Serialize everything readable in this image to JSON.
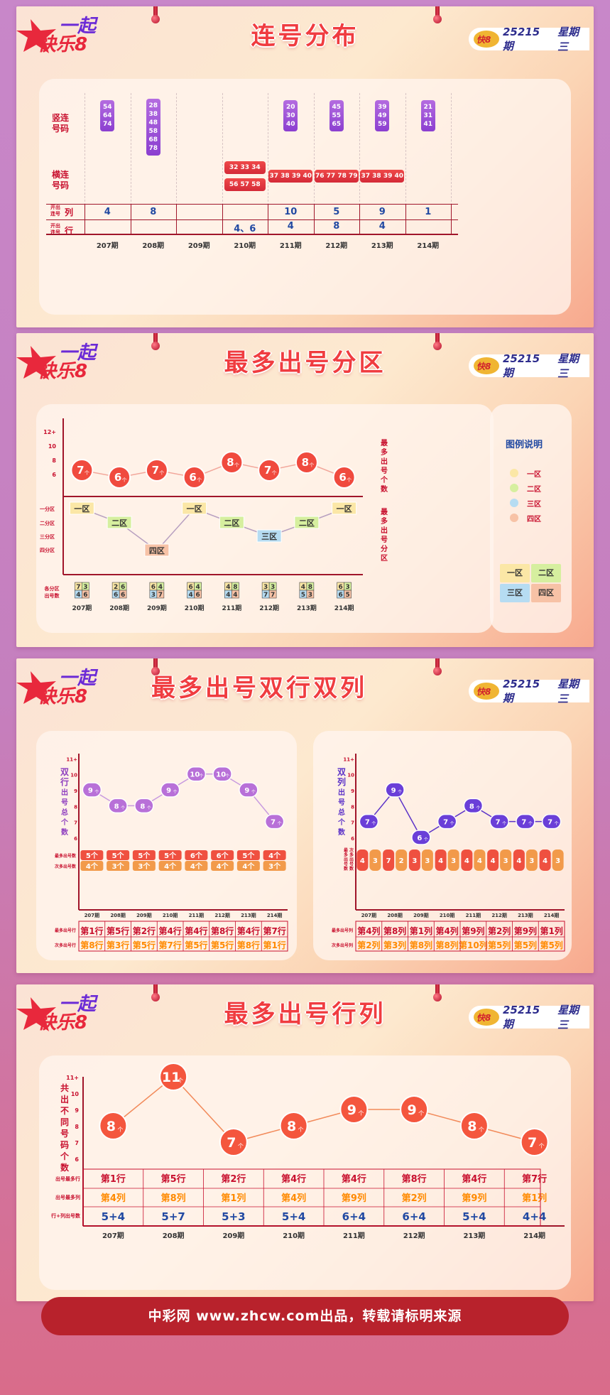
{
  "brand": {
    "logo_text": "一起",
    "logo_sub": "快乐8",
    "issue": "25215期",
    "weekday": "星期三"
  },
  "footer": "中彩网 www.zhcw.com出品，转载请标明来源",
  "p1": {
    "title": "连号分布",
    "row_vertical": "竖连\n号码",
    "row_horizontal": "横连\n号码",
    "row_col_label": "开出\n连号",
    "row_col_suffix": "列",
    "row_row_label": "开出\n连号",
    "row_row_suffix": "行",
    "issues": [
      "207期",
      "208期",
      "209期",
      "210期",
      "211期",
      "212期",
      "213期",
      "214期"
    ],
    "vertical": [
      [
        "54",
        "64",
        "74"
      ],
      [
        "28",
        "38",
        "48",
        "58",
        "68",
        "78"
      ],
      [],
      [],
      [
        "20",
        "30",
        "40"
      ],
      [
        "45",
        "55",
        "65"
      ],
      [
        "39",
        "49",
        "59"
      ],
      [
        "21",
        "31",
        "41"
      ]
    ],
    "horizontal": [
      [],
      [],
      [],
      [
        "32 33 34",
        "56 57 58"
      ],
      [
        "37 38 39 40"
      ],
      [
        "76 77 78 79"
      ],
      [
        "37 38 39 40"
      ],
      []
    ],
    "cols": [
      "4",
      "8",
      "",
      "",
      "10",
      "5",
      "9",
      "1"
    ],
    "rows": [
      "",
      "",
      "",
      "4、6",
      "4",
      "8",
      "4",
      ""
    ]
  },
  "p2": {
    "title": "最多出号分区",
    "yticks": [
      "12+",
      "10",
      "8",
      "6"
    ],
    "right_label1": "最多出号个数",
    "right_label2": "最多出号分区",
    "zone_axis": [
      "一分区",
      "二分区",
      "三分区",
      "四分区"
    ],
    "pair_label": "各分区\n出号数",
    "legend_title": "图例说明",
    "legend": [
      "一区",
      "二区",
      "三区",
      "四区"
    ],
    "legend_colors": [
      "#fbe7a6",
      "#d6ef9f",
      "#b6dcf2",
      "#f7c2a6"
    ],
    "grid_labels": [
      "一区",
      "二区",
      "三区",
      "四区"
    ],
    "pairs": [
      [
        "7",
        "3",
        "4",
        "6"
      ],
      [
        "2",
        "6",
        "6",
        "6"
      ],
      [
        "6",
        "4",
        "3",
        "7"
      ],
      [
        "6",
        "4",
        "4",
        "6"
      ],
      [
        "4",
        "8",
        "4",
        "4"
      ],
      [
        "3",
        "3",
        "7",
        "7"
      ],
      [
        "4",
        "8",
        "5",
        "3"
      ],
      [
        "6",
        "3",
        "6",
        "5"
      ]
    ]
  },
  "p3": {
    "title": "最多出号双行双列",
    "left_ylabel": "双行出号总个数",
    "right_ylabel": "双列出号总个数",
    "yticks": [
      "11+",
      "10",
      "9",
      "8",
      "7",
      "6"
    ],
    "row_labels_a": [
      "最多出号数",
      "次多出号数"
    ],
    "row_labels_b_left": [
      "最多出号行",
      "次多出号行"
    ],
    "row_labels_b_right": [
      "最多出号列",
      "次多出号列"
    ],
    "unit_row": "行",
    "unit_col": "列",
    "unit_rank": "第",
    "left_max": [
      "5",
      "5",
      "5",
      "5",
      "6",
      "6",
      "5",
      "4"
    ],
    "left_second": [
      "4",
      "3",
      "3",
      "4",
      "4",
      "4",
      "4",
      "3"
    ],
    "left_rowmax": [
      "1",
      "5",
      "2",
      "4",
      "4",
      "8",
      "4",
      "7"
    ],
    "left_rowsec": [
      "8",
      "3",
      "5",
      "7",
      "5",
      "5",
      "8",
      "1"
    ],
    "right_pairs": [
      [
        "4",
        "3"
      ],
      [
        "7",
        "2"
      ],
      [
        "3",
        "3"
      ],
      [
        "4",
        "3"
      ],
      [
        "4",
        "4"
      ],
      [
        "4",
        "3"
      ],
      [
        "4",
        "3"
      ],
      [
        "4",
        "3"
      ]
    ],
    "right_colmax": [
      "4",
      "8",
      "1",
      "4",
      "9",
      "2",
      "9",
      "1"
    ],
    "right_colsec": [
      "2",
      "3",
      "8",
      "8",
      "10",
      "5",
      "5",
      "5"
    ]
  },
  "p4": {
    "title": "最多出号行列",
    "ylabel": "共出不同号码个数",
    "yticks": [
      "11+",
      "10",
      "9",
      "8",
      "7",
      "6"
    ],
    "row_labels": [
      "出号最多行",
      "出号最多列",
      "行+列出号数"
    ],
    "unit_row": "行",
    "unit_col": "列",
    "unit_rank": "第",
    "rowmax": [
      "1",
      "5",
      "2",
      "4",
      "4",
      "8",
      "4",
      "7"
    ],
    "colmax": [
      "4",
      "8",
      "1",
      "4",
      "9",
      "2",
      "9",
      "1"
    ],
    "sums": [
      "5+4",
      "5+7",
      "5+3",
      "5+4",
      "6+4",
      "6+4",
      "5+4",
      "4+4"
    ]
  },
  "chart_data": [
    {
      "type": "table",
      "title": "连号分布",
      "categories": [
        "207期",
        "208期",
        "209期",
        "210期",
        "211期",
        "212期",
        "213期",
        "214期"
      ],
      "series": [
        {
          "name": "开出连号列",
          "values": [
            "4",
            "8",
            "",
            "",
            "10",
            "5",
            "9",
            "1"
          ]
        },
        {
          "name": "开出连号行",
          "values": [
            "",
            "",
            "",
            "4、6",
            "4",
            "8",
            "4",
            ""
          ]
        }
      ]
    },
    {
      "type": "line",
      "title": "最多出号分区",
      "categories": [
        "207期",
        "208期",
        "209期",
        "210期",
        "211期",
        "212期",
        "213期",
        "214期"
      ],
      "series": [
        {
          "name": "最多出号个数",
          "values": [
            7,
            6,
            7,
            6,
            8,
            7,
            8,
            6
          ]
        },
        {
          "name": "最多出号分区",
          "values": [
            "一区",
            "二区",
            "四区",
            "一区",
            "二区",
            "三区",
            "二区",
            "一区"
          ]
        }
      ],
      "ylim": [
        6,
        12
      ]
    },
    {
      "type": "line",
      "title": "最多出号双行",
      "categories": [
        "207期",
        "208期",
        "209期",
        "210期",
        "211期",
        "212期",
        "213期",
        "214期"
      ],
      "series": [
        {
          "name": "双行出号总个数",
          "values": [
            9,
            8,
            8,
            9,
            10,
            10,
            9,
            7
          ]
        }
      ],
      "ylim": [
        6,
        11
      ]
    },
    {
      "type": "line",
      "title": "最多出号双列",
      "categories": [
        "207期",
        "208期",
        "209期",
        "210期",
        "211期",
        "212期",
        "213期",
        "214期"
      ],
      "series": [
        {
          "name": "双列出号总个数",
          "values": [
            7,
            9,
            6,
            7,
            8,
            7,
            7,
            7
          ]
        }
      ],
      "ylim": [
        6,
        11
      ]
    },
    {
      "type": "line",
      "title": "最多出号行列",
      "categories": [
        "207期",
        "208期",
        "209期",
        "210期",
        "211期",
        "212期",
        "213期",
        "214期"
      ],
      "series": [
        {
          "name": "共出不同号码个数",
          "values": [
            8,
            11,
            7,
            8,
            9,
            9,
            8,
            7
          ]
        }
      ],
      "ylim": [
        6,
        11
      ]
    }
  ]
}
